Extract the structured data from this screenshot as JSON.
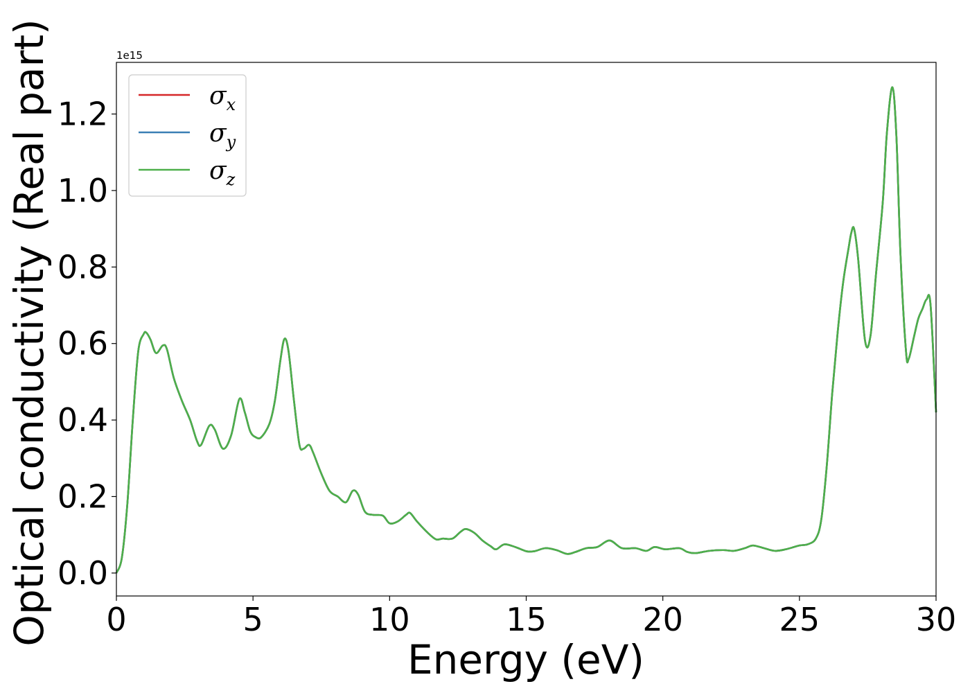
{
  "chart_data": {
    "type": "line",
    "xlabel": "Energy (eV)",
    "ylabel": "Optical conductivity (Real part)",
    "y_offset_text": "1e15",
    "xlim": [
      0,
      30
    ],
    "ylim": [
      -0.06,
      1.335
    ],
    "x_ticks": [
      0,
      5,
      10,
      15,
      20,
      25,
      30
    ],
    "x_tick_labels": [
      "0",
      "5",
      "10",
      "15",
      "20",
      "25",
      "30"
    ],
    "y_ticks": [
      0.0,
      0.2,
      0.4,
      0.6,
      0.8,
      1.0,
      1.2
    ],
    "y_tick_labels": [
      "0.0",
      "0.2",
      "0.4",
      "0.6",
      "0.8",
      "1.0",
      "1.2"
    ],
    "grid": false,
    "legend_position": "top-left",
    "series": [
      {
        "name": "σx",
        "symbol": "σ",
        "subscript": "x",
        "color": "#d62728"
      },
      {
        "name": "σy",
        "symbol": "σ",
        "subscript": "y",
        "color": "#3a7fb5"
      },
      {
        "name": "σz",
        "symbol": "σ",
        "subscript": "z",
        "color": "#4daf4a"
      }
    ],
    "x": [
      0,
      0.2,
      0.4,
      0.6,
      0.8,
      1.0,
      1.1,
      1.25,
      1.45,
      1.7,
      1.85,
      2.1,
      2.4,
      2.7,
      2.95,
      3.1,
      3.4,
      3.6,
      3.9,
      4.2,
      4.5,
      4.7,
      4.9,
      5.1,
      5.3,
      5.6,
      5.8,
      6.0,
      6.15,
      6.3,
      6.5,
      6.7,
      6.85,
      7.05,
      7.2,
      7.5,
      7.8,
      8.1,
      8.4,
      8.65,
      8.85,
      9.1,
      9.4,
      9.75,
      10.0,
      10.3,
      10.6,
      10.75,
      11.0,
      11.4,
      11.7,
      11.95,
      12.3,
      12.6,
      12.8,
      13.1,
      13.4,
      13.7,
      13.9,
      14.2,
      14.6,
      15.0,
      15.3,
      15.7,
      16.1,
      16.5,
      16.8,
      17.2,
      17.6,
      18.05,
      18.5,
      19.0,
      19.4,
      19.7,
      20.1,
      20.6,
      20.9,
      21.2,
      21.7,
      22.2,
      22.6,
      23.0,
      23.3,
      23.7,
      24.1,
      24.5,
      25.0,
      25.3,
      25.6,
      25.8,
      26.0,
      26.2,
      26.4,
      26.6,
      26.8,
      26.9,
      27.0,
      27.15,
      27.4,
      27.6,
      27.8,
      28.05,
      28.2,
      28.4,
      28.55,
      28.7,
      28.9,
      29.0,
      29.2,
      29.35,
      29.5,
      29.65,
      29.8,
      30.0
    ],
    "values": [
      0.0,
      0.04,
      0.18,
      0.4,
      0.58,
      0.625,
      0.628,
      0.61,
      0.575,
      0.595,
      0.585,
      0.51,
      0.45,
      0.4,
      0.345,
      0.335,
      0.385,
      0.375,
      0.325,
      0.36,
      0.455,
      0.42,
      0.37,
      0.355,
      0.355,
      0.39,
      0.45,
      0.555,
      0.612,
      0.58,
      0.45,
      0.335,
      0.325,
      0.335,
      0.315,
      0.26,
      0.215,
      0.2,
      0.185,
      0.215,
      0.205,
      0.16,
      0.152,
      0.15,
      0.13,
      0.135,
      0.152,
      0.157,
      0.135,
      0.105,
      0.088,
      0.09,
      0.09,
      0.108,
      0.115,
      0.105,
      0.085,
      0.07,
      0.062,
      0.075,
      0.068,
      0.057,
      0.057,
      0.065,
      0.06,
      0.05,
      0.055,
      0.065,
      0.068,
      0.085,
      0.065,
      0.065,
      0.058,
      0.068,
      0.062,
      0.065,
      0.055,
      0.052,
      0.058,
      0.06,
      0.058,
      0.065,
      0.072,
      0.065,
      0.058,
      0.062,
      0.072,
      0.075,
      0.09,
      0.14,
      0.28,
      0.47,
      0.63,
      0.76,
      0.85,
      0.89,
      0.9,
      0.82,
      0.608,
      0.62,
      0.78,
      0.97,
      1.15,
      1.27,
      1.14,
      0.83,
      0.58,
      0.56,
      0.62,
      0.665,
      0.69,
      0.715,
      0.7,
      0.42
    ]
  }
}
